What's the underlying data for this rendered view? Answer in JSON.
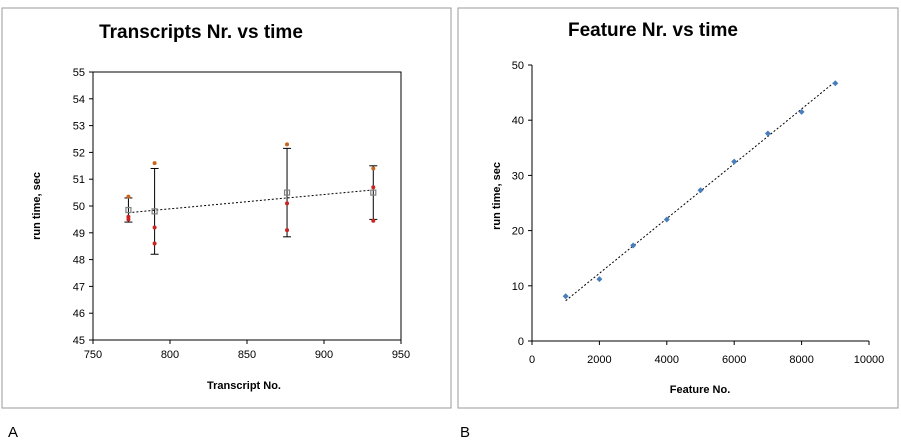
{
  "panel_labels": [
    "A",
    "B"
  ],
  "colors": {
    "mean_marker": "#808080",
    "run_marker_red": "#cc2222",
    "run_marker_orange": "#c8641e",
    "feature_marker": "#4a7ebb",
    "trend": "#000000"
  },
  "chart_data": [
    {
      "type": "scatter",
      "title": "Transcripts Nr. vs time",
      "xlabel": "Transcript No.",
      "ylabel": "run time, sec",
      "xlim": [
        750,
        950
      ],
      "ylim": [
        45,
        55
      ],
      "xticks": [
        750,
        800,
        850,
        900,
        950
      ],
      "yticks": [
        45,
        46,
        47,
        48,
        49,
        50,
        51,
        52,
        53,
        54,
        55
      ],
      "grid": false,
      "points": [
        {
          "x": 773,
          "mean": 49.85,
          "err_low": 49.4,
          "err_high": 50.3,
          "runs": [
            50.35,
            49.6,
            49.5
          ]
        },
        {
          "x": 790,
          "mean": 49.8,
          "err_low": 48.2,
          "err_high": 51.4,
          "runs": [
            51.6,
            49.2,
            48.6
          ]
        },
        {
          "x": 876,
          "mean": 50.5,
          "err_low": 48.85,
          "err_high": 52.15,
          "runs": [
            52.3,
            50.1,
            49.1
          ]
        },
        {
          "x": 932,
          "mean": 50.5,
          "err_low": 49.5,
          "err_high": 51.5,
          "runs": [
            51.4,
            50.7,
            49.45
          ]
        }
      ],
      "trendline": {
        "x": [
          773,
          932
        ],
        "y": [
          49.75,
          50.6
        ]
      }
    },
    {
      "type": "scatter",
      "title": "Feature Nr. vs time",
      "xlabel": "Feature No.",
      "ylabel": "run time, sec",
      "xlim": [
        0,
        10000
      ],
      "ylim": [
        0,
        50
      ],
      "xticks": [
        0,
        2000,
        4000,
        6000,
        8000,
        10000
      ],
      "yticks": [
        0,
        10,
        20,
        30,
        40,
        50
      ],
      "grid": false,
      "points": [
        {
          "x": 1000,
          "y": 8.1
        },
        {
          "x": 2000,
          "y": 11.2
        },
        {
          "x": 3000,
          "y": 17.3
        },
        {
          "x": 4000,
          "y": 22.0
        },
        {
          "x": 5000,
          "y": 27.3
        },
        {
          "x": 6000,
          "y": 32.5
        },
        {
          "x": 7000,
          "y": 37.6
        },
        {
          "x": 8000,
          "y": 41.5
        },
        {
          "x": 9000,
          "y": 46.7
        }
      ],
      "trendline": {
        "x": [
          1000,
          9000
        ],
        "y": [
          7.3,
          47.0
        ]
      }
    }
  ]
}
